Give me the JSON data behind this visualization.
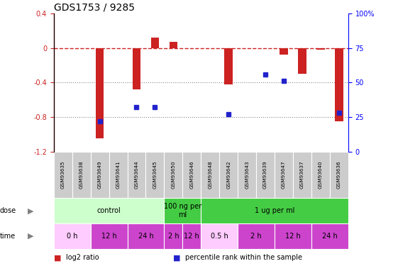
{
  "title": "GDS1753 / 9285",
  "samples": [
    "GSM93635",
    "GSM93638",
    "GSM93649",
    "GSM93641",
    "GSM93644",
    "GSM93645",
    "GSM93650",
    "GSM93646",
    "GSM93648",
    "GSM93642",
    "GSM93643",
    "GSM93639",
    "GSM93647",
    "GSM93637",
    "GSM93640",
    "GSM93636"
  ],
  "log2_ratio": [
    0.0,
    0.0,
    -1.05,
    0.0,
    -0.48,
    0.12,
    0.07,
    0.0,
    0.0,
    -0.42,
    0.0,
    0.0,
    -0.08,
    -0.3,
    -0.02,
    -0.85
  ],
  "percentile_rank": [
    null,
    null,
    22,
    null,
    32,
    32,
    null,
    null,
    null,
    27,
    null,
    56,
    51,
    null,
    null,
    28
  ],
  "ylim_left": [
    -1.2,
    0.4
  ],
  "ylim_right": [
    0,
    100
  ],
  "left_ticks": [
    -1.2,
    -0.8,
    -0.4,
    0.0,
    0.4
  ],
  "right_ticks": [
    0,
    25,
    50,
    75,
    100
  ],
  "dose_groups": [
    {
      "label": "control",
      "start": 0,
      "end": 6,
      "color": "#ccffcc"
    },
    {
      "label": "100 ng per\nml",
      "start": 6,
      "end": 8,
      "color": "#44cc44"
    },
    {
      "label": "1 ug per ml",
      "start": 8,
      "end": 16,
      "color": "#44cc44"
    }
  ],
  "time_groups": [
    {
      "label": "0 h",
      "start": 0,
      "end": 2,
      "color": "#ffccff"
    },
    {
      "label": "12 h",
      "start": 2,
      "end": 4,
      "color": "#cc44cc"
    },
    {
      "label": "24 h",
      "start": 4,
      "end": 6,
      "color": "#cc44cc"
    },
    {
      "label": "2 h",
      "start": 6,
      "end": 7,
      "color": "#cc44cc"
    },
    {
      "label": "12 h",
      "start": 7,
      "end": 8,
      "color": "#cc44cc"
    },
    {
      "label": "0.5 h",
      "start": 8,
      "end": 10,
      "color": "#ffccff"
    },
    {
      "label": "2 h",
      "start": 10,
      "end": 12,
      "color": "#cc44cc"
    },
    {
      "label": "12 h",
      "start": 12,
      "end": 14,
      "color": "#cc44cc"
    },
    {
      "label": "24 h",
      "start": 14,
      "end": 16,
      "color": "#cc44cc"
    }
  ],
  "bar_color": "#cc2222",
  "point_color": "#2222cc",
  "ref_line_color": "#cc2222",
  "grid_color": "#888888",
  "bg_color": "#ffffff",
  "sample_bg": "#cccccc",
  "legend_items": [
    {
      "label": "log2 ratio",
      "color": "#cc2222"
    },
    {
      "label": "percentile rank within the sample",
      "color": "#2222cc"
    }
  ]
}
